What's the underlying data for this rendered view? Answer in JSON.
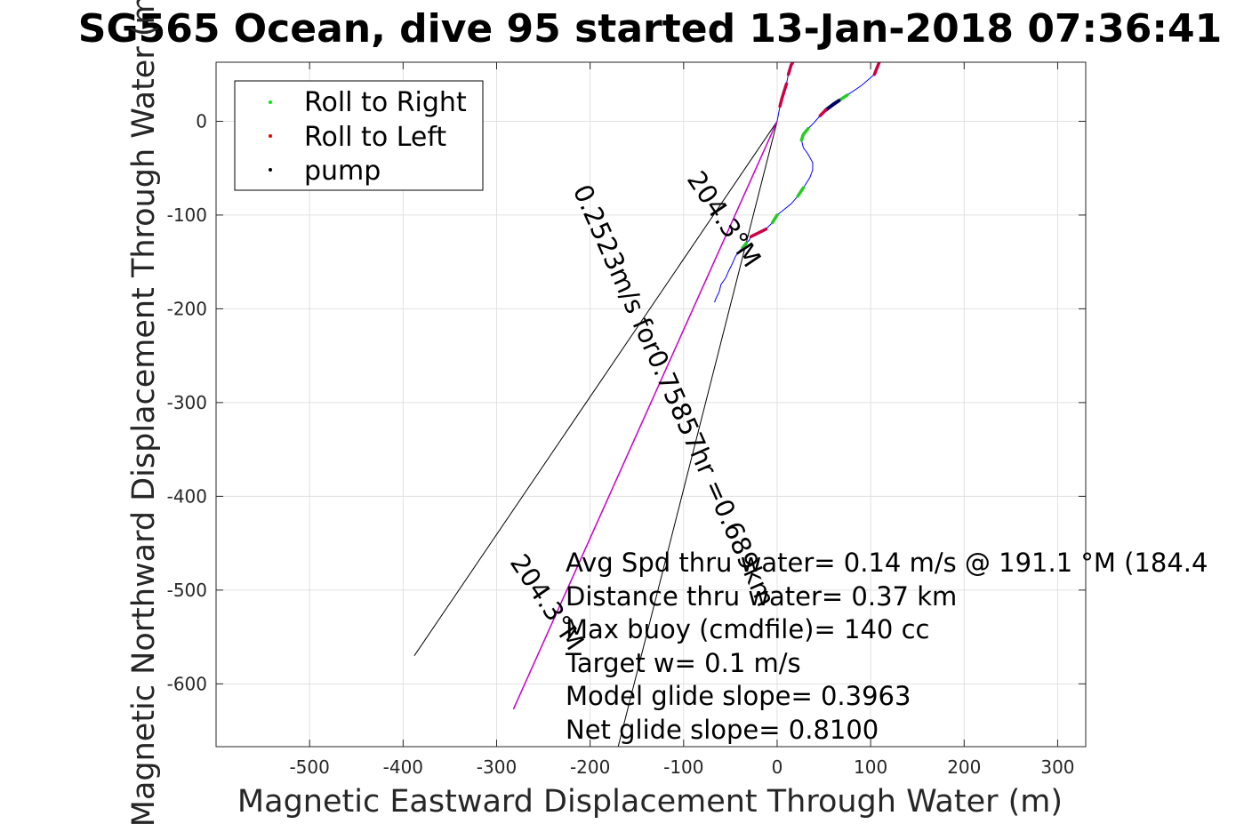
{
  "chart_data": {
    "type": "line",
    "title": "SG565 Ocean, dive 95 started 13-Jan-2018 07:36:41",
    "xlabel": "Magnetic Eastward Displacement Through Water (m)",
    "ylabel": "Magnetic Northward Displacement Through Water (m)",
    "xlim": [
      -600,
      330
    ],
    "ylim": [
      -667,
      63
    ],
    "xticks": [
      -500,
      -400,
      -300,
      -200,
      -100,
      0,
      100,
      200,
      300
    ],
    "yticks": [
      0,
      -100,
      -200,
      -300,
      -400,
      -500,
      -600
    ],
    "grid": true,
    "legend": {
      "placement": "top-left",
      "entries": [
        {
          "label": "Roll to Right",
          "color": "#00ee00"
        },
        {
          "label": "Roll to Left",
          "color": "#ee0000"
        },
        {
          "label": "pump",
          "color": "#000000"
        }
      ]
    },
    "track": {
      "color": "#0000ff",
      "points": [
        [
          0,
          0
        ],
        [
          3,
          16
        ],
        [
          5,
          24
        ],
        [
          10,
          40
        ],
        [
          12,
          50
        ],
        [
          15,
          60
        ],
        [
          25,
          77
        ],
        [
          45,
          98
        ],
        [
          68,
          115
        ],
        [
          90,
          120
        ],
        [
          105,
          122
        ],
        [
          118,
          118
        ],
        [
          120,
          110
        ],
        [
          119,
          96
        ],
        [
          116,
          83
        ],
        [
          110,
          65
        ],
        [
          104,
          50
        ],
        [
          90,
          38
        ],
        [
          75,
          28
        ],
        [
          66,
          22
        ],
        [
          60,
          18
        ],
        [
          52,
          12
        ],
        [
          46,
          6
        ],
        [
          39,
          -2
        ],
        [
          33,
          -8
        ],
        [
          28,
          -14
        ],
        [
          26,
          -20
        ],
        [
          28,
          -28
        ],
        [
          33,
          -35
        ],
        [
          38,
          -44
        ],
        [
          38,
          -52
        ],
        [
          35,
          -60
        ],
        [
          28,
          -71
        ],
        [
          22,
          -80
        ],
        [
          15,
          -88
        ],
        [
          5,
          -96
        ],
        [
          0,
          -100
        ],
        [
          -5,
          -108
        ],
        [
          -12,
          -115
        ],
        [
          -22,
          -120
        ],
        [
          -28,
          -123
        ],
        [
          -30,
          -127
        ],
        [
          -33,
          -130
        ],
        [
          -37,
          -135
        ],
        [
          -42,
          -140
        ],
        [
          -45,
          -145
        ],
        [
          -48,
          -152
        ],
        [
          -52,
          -160
        ],
        [
          -55,
          -167
        ],
        [
          -60,
          -174
        ],
        [
          -62,
          -182
        ],
        [
          -65,
          -188
        ],
        [
          -67,
          -193
        ]
      ]
    },
    "segments": [
      {
        "kind": "roll-left",
        "color": "#cc0044",
        "from": 1,
        "to": 3
      },
      {
        "kind": "roll-left",
        "color": "#cc0044",
        "from": 4,
        "to": 13
      },
      {
        "kind": "roll-left",
        "color": "#cc0044",
        "from": 15,
        "to": 16
      },
      {
        "kind": "roll-right",
        "color": "#22cc22",
        "from": 18,
        "to": 19
      },
      {
        "kind": "pump",
        "color": "#000066",
        "from": 19,
        "to": 21
      },
      {
        "kind": "roll-left",
        "color": "#cc0044",
        "from": 21,
        "to": 22
      },
      {
        "kind": "roll-right",
        "color": "#22cc22",
        "from": 24,
        "to": 26
      },
      {
        "kind": "roll-right",
        "color": "#22cc22",
        "from": 32,
        "to": 33
      },
      {
        "kind": "roll-right",
        "color": "#22cc22",
        "from": 36,
        "to": 37
      },
      {
        "kind": "roll-left",
        "color": "#cc0044",
        "from": 38,
        "to": 40
      },
      {
        "kind": "roll-right",
        "color": "#22cc22",
        "from": 42,
        "to": 43
      }
    ],
    "lines": [
      {
        "name": "current-line-left",
        "color": "#000000",
        "points": [
          [
            0,
            0
          ],
          [
            -388,
            -570
          ]
        ]
      },
      {
        "name": "current-line-center",
        "color": "#000000",
        "points": [
          [
            0,
            0
          ],
          [
            -282,
            -627
          ]
        ]
      },
      {
        "name": "current-line-right",
        "color": "#000000",
        "points": [
          [
            0,
            0
          ],
          [
            -170,
            -667
          ]
        ]
      },
      {
        "name": "drift-line",
        "color": "#cc00cc",
        "points": [
          [
            0,
            0
          ],
          [
            -282,
            -627
          ]
        ]
      }
    ],
    "rotated_labels": [
      {
        "text": "0.2523m/s for0.75857hr =0.689km"
      },
      {
        "text": "204.3°M"
      },
      {
        "text": "204.3°M"
      }
    ],
    "annotations": [
      "Avg Spd thru water=  0.14 m/s @ 191.1 °M (184.4",
      "Distance thru water=  0.37 km",
      "Max buoy (cmdfile)= 140 cc",
      "Target w= 0.1 m/s",
      "Model glide slope= 0.3963",
      "Net glide slope= 0.8100"
    ]
  }
}
